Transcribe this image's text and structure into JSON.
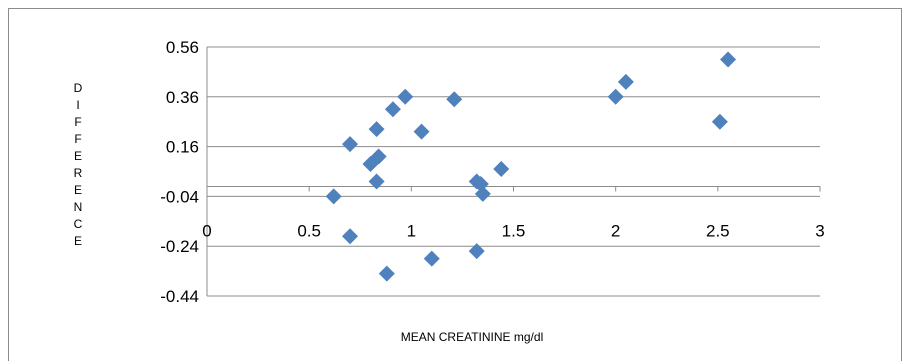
{
  "chart_data": {
    "type": "scatter",
    "title": "",
    "xlabel": "MEAN CREATININE mg/dl",
    "ylabel": "DIFFERENCE",
    "xlim": [
      0,
      3
    ],
    "ylim": [
      -0.44,
      0.56
    ],
    "x_ticks": [
      "0",
      "0.5",
      "1",
      "1.5",
      "2",
      "2.5",
      "3"
    ],
    "y_ticks": [
      "0.56",
      "0.36",
      "0.16",
      "-0.04",
      "-0.24",
      "-0.44"
    ],
    "grid": true,
    "legend": "none",
    "marker": "diamond",
    "color": "#4f81bd",
    "series": [
      {
        "x": [
          0.62,
          0.7,
          0.7,
          0.8,
          0.83,
          0.83,
          0.84,
          0.88,
          0.91,
          0.97,
          1.05,
          1.1,
          1.21,
          1.32,
          1.32,
          1.34,
          1.35,
          1.44,
          2.0,
          2.05,
          2.51,
          2.55
        ],
        "y": [
          -0.04,
          0.17,
          -0.2,
          0.09,
          0.23,
          0.02,
          0.12,
          -0.35,
          0.31,
          0.36,
          0.22,
          -0.29,
          0.35,
          0.02,
          -0.26,
          0.01,
          -0.03,
          0.07,
          0.36,
          0.42,
          0.26,
          0.51
        ]
      }
    ]
  }
}
